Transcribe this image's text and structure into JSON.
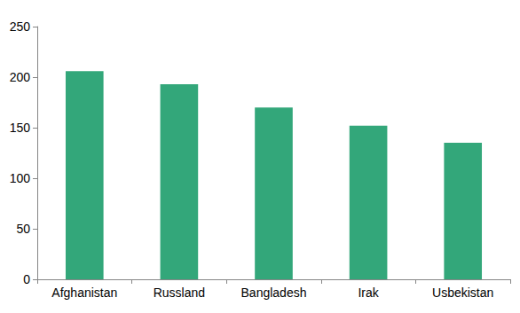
{
  "chart_data": {
    "type": "bar",
    "categories": [
      "Afghanistan",
      "Russland",
      "Bangladesh",
      "Irak",
      "Usbekistan"
    ],
    "values": [
      206,
      193,
      170,
      152,
      135
    ],
    "color": "#33a77a",
    "ylim": [
      0,
      250
    ],
    "yticks": [
      0,
      50,
      100,
      150,
      200,
      250
    ],
    "grid": false
  }
}
